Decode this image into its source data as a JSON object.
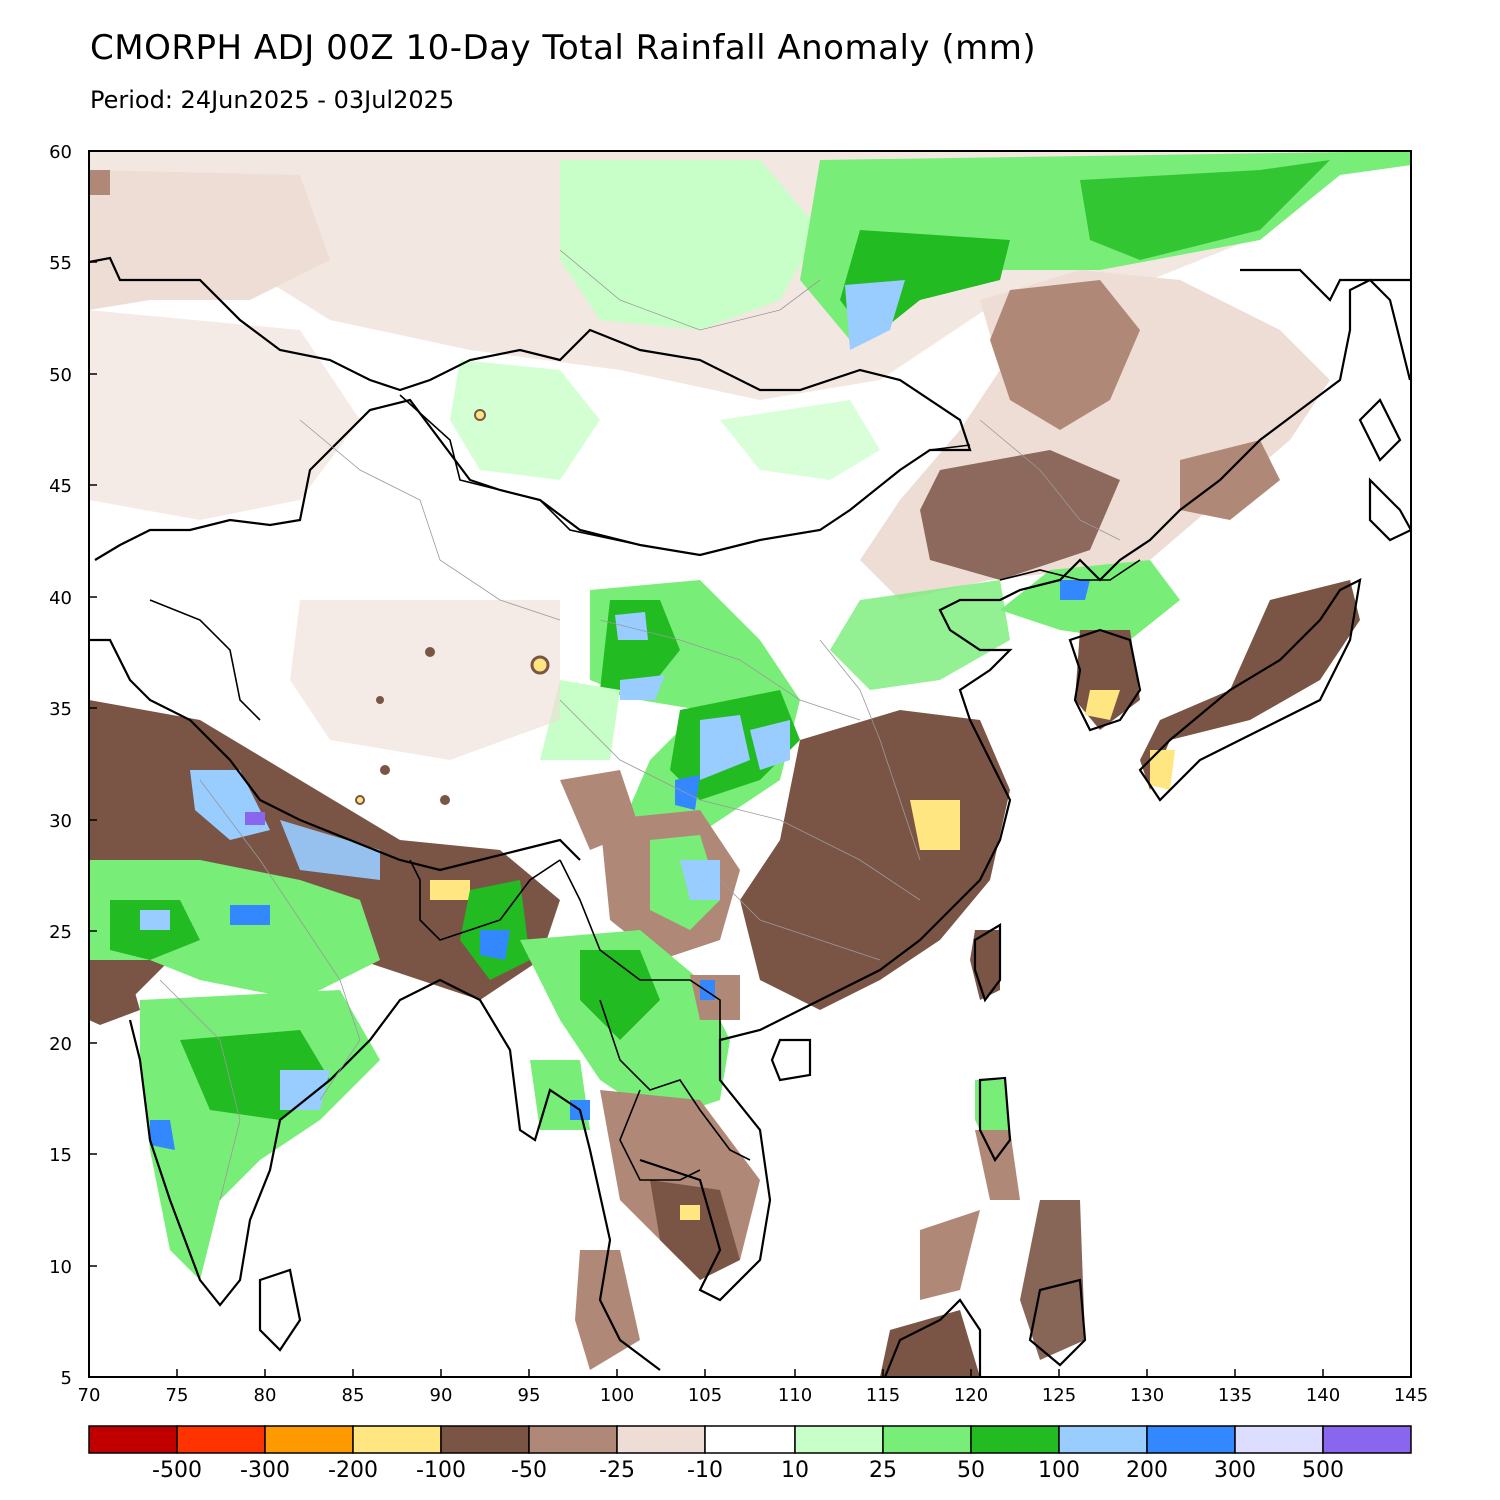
{
  "title": "CMORPH ADJ 00Z 10-Day Total Rainfall Anomaly (mm)",
  "subtitle": "Period: 24Jun2025 - 03Jul2025",
  "map": {
    "lon_range": [
      70,
      145
    ],
    "lat_range": [
      5,
      60
    ],
    "lon_ticks": [
      "70",
      "75",
      "80",
      "85",
      "90",
      "95",
      "100",
      "105",
      "110",
      "115",
      "120",
      "125",
      "130",
      "135",
      "140",
      "145"
    ],
    "lat_ticks": [
      "60",
      "55",
      "50",
      "45",
      "40",
      "35",
      "30",
      "25",
      "20",
      "15",
      "10",
      "5"
    ]
  },
  "colorbar": {
    "colors": [
      "#c00000",
      "#ff3300",
      "#ff9900",
      "#ffe680",
      "#7a5546",
      "#b08878",
      "#eeddd5",
      "#ffffff",
      "#c8ffc8",
      "#78ee78",
      "#22bb22",
      "#99ccff",
      "#3388ff",
      "#ddddff",
      "#8866ee"
    ],
    "labels": [
      "-500",
      "-300",
      "-200",
      "-100",
      "-50",
      "-25",
      "-10",
      "10",
      "25",
      "50",
      "100",
      "200",
      "300",
      "500"
    ]
  }
}
